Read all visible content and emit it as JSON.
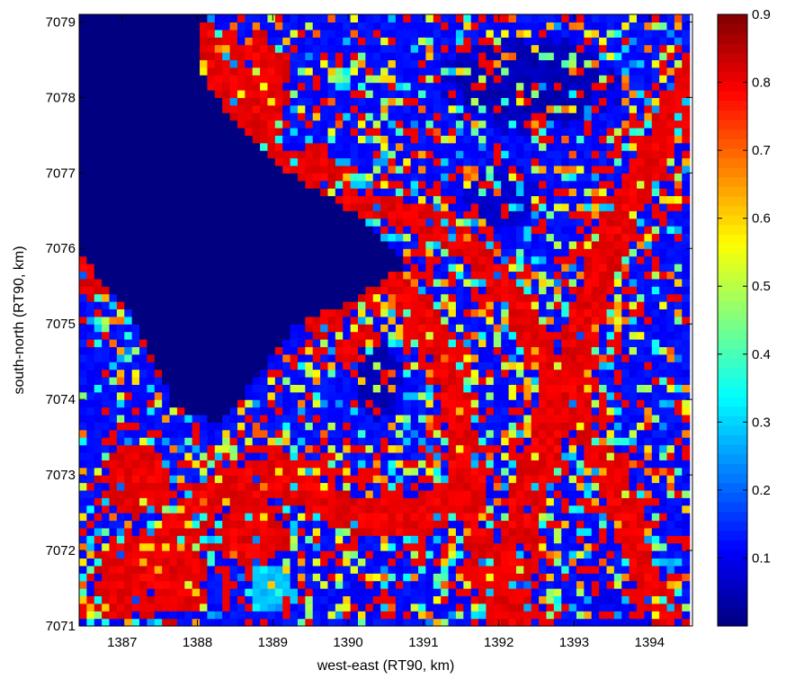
{
  "chart_data": {
    "type": "heatmap",
    "title": "",
    "xlabel": "west-east (RT90, km)",
    "ylabel": "south-north (RT90, km)",
    "xlim": [
      1386.43,
      1394.57
    ],
    "ylim": [
      7071.0,
      7079.1
    ],
    "xticks": [
      1387,
      1388,
      1389,
      1390,
      1391,
      1392,
      1393,
      1394
    ],
    "xtick_labels": [
      "1387",
      "1388",
      "1389",
      "1390",
      "1391",
      "1392",
      "1393",
      "1394"
    ],
    "yticks": [
      7071,
      7072,
      7073,
      7074,
      7075,
      7076,
      7077,
      7078,
      7079
    ],
    "ytick_labels": [
      "7071",
      "7072",
      "7073",
      "7074",
      "7075",
      "7076",
      "7077",
      "7078",
      "7079"
    ],
    "colormap": "jet",
    "clim": [
      0.0,
      0.9
    ],
    "colorbar_ticks": [
      0.1,
      0.2,
      0.3,
      0.4,
      0.5,
      0.6,
      0.7,
      0.8,
      0.9
    ],
    "colorbar_tick_labels": [
      "0.1",
      "0.2",
      "0.3",
      "0.4",
      "0.5",
      "0.6",
      "0.7",
      "0.8",
      "0.9"
    ],
    "grid": false,
    "cell_size_km": 0.1,
    "regions": [
      {
        "kind": "background",
        "value": 0.12
      },
      {
        "kind": "lake",
        "value": 0.0,
        "points": [
          [
            1386.45,
            7079.1
          ],
          [
            1388.1,
            7079.1
          ],
          [
            1388.0,
            7078.4
          ],
          [
            1388.4,
            7077.8
          ],
          [
            1389.2,
            7077.0
          ],
          [
            1390.2,
            7076.4
          ],
          [
            1390.8,
            7075.8
          ],
          [
            1390.0,
            7075.3
          ],
          [
            1389.3,
            7075.0
          ],
          [
            1388.8,
            7074.3
          ],
          [
            1388.3,
            7073.7
          ],
          [
            1387.7,
            7073.9
          ],
          [
            1387.4,
            7074.6
          ],
          [
            1387.0,
            7075.3
          ],
          [
            1386.45,
            7075.9
          ]
        ]
      },
      {
        "kind": "band",
        "value": 0.8,
        "width": 0.35,
        "points": [
          [
            1388.0,
            7079.1
          ],
          [
            1388.3,
            7078.2
          ],
          [
            1388.9,
            7077.4
          ],
          [
            1389.5,
            7076.9
          ],
          [
            1390.3,
            7076.6
          ],
          [
            1391.0,
            7076.4
          ],
          [
            1391.6,
            7076.0
          ],
          [
            1392.2,
            7075.3
          ],
          [
            1392.6,
            7074.6
          ],
          [
            1393.0,
            7073.9
          ],
          [
            1393.4,
            7073.2
          ],
          [
            1393.7,
            7072.4
          ],
          [
            1394.0,
            7071.6
          ],
          [
            1394.3,
            7071.0
          ]
        ]
      },
      {
        "kind": "band",
        "value": 0.8,
        "width": 0.45,
        "points": [
          [
            1394.57,
            7078.3
          ],
          [
            1394.1,
            7077.3
          ],
          [
            1393.6,
            7076.4
          ],
          [
            1393.3,
            7075.5
          ],
          [
            1393.0,
            7074.6
          ],
          [
            1392.7,
            7073.7
          ],
          [
            1392.4,
            7072.8
          ],
          [
            1392.2,
            7071.9
          ],
          [
            1392.2,
            7071.0
          ]
        ]
      },
      {
        "kind": "band",
        "value": 0.8,
        "width": 0.35,
        "points": [
          [
            1389.6,
            7075.0
          ],
          [
            1390.0,
            7075.4
          ],
          [
            1390.5,
            7075.6
          ],
          [
            1391.0,
            7075.2
          ],
          [
            1391.3,
            7074.5
          ],
          [
            1391.5,
            7073.7
          ],
          [
            1391.5,
            7073.0
          ],
          [
            1391.7,
            7072.3
          ],
          [
            1391.9,
            7071.6
          ],
          [
            1392.0,
            7071.0
          ]
        ]
      },
      {
        "kind": "band",
        "value": 0.8,
        "width": 0.5,
        "points": [
          [
            1386.9,
            7071.3
          ],
          [
            1387.6,
            7072.1
          ],
          [
            1388.3,
            7072.8
          ],
          [
            1389.1,
            7073.0
          ],
          [
            1390.0,
            7072.5
          ],
          [
            1390.9,
            7072.4
          ],
          [
            1391.6,
            7072.9
          ]
        ]
      },
      {
        "kind": "blob",
        "value": 0.8,
        "center": [
          1387.4,
          7071.7
        ],
        "radius": [
          0.7,
          0.6
        ]
      },
      {
        "kind": "blob",
        "value": 0.8,
        "center": [
          1388.7,
          7072.2
        ],
        "radius": [
          0.5,
          0.4
        ]
      },
      {
        "kind": "blob",
        "value": 0.8,
        "center": [
          1387.2,
          7072.9
        ],
        "radius": [
          0.45,
          0.45
        ]
      },
      {
        "kind": "blob",
        "value": 0.8,
        "center": [
          1386.65,
          7075.9
        ],
        "radius": [
          0.25,
          0.5
        ]
      },
      {
        "kind": "blob",
        "value": 0.8,
        "center": [
          1388.75,
          7078.1
        ],
        "radius": [
          0.45,
          0.7
        ]
      },
      {
        "kind": "blob",
        "value": 0.8,
        "center": [
          1389.5,
          7077.0
        ],
        "radius": [
          0.4,
          0.35
        ]
      },
      {
        "kind": "blob",
        "value": 0.8,
        "center": [
          1390.2,
          7074.6
        ],
        "radius": [
          0.35,
          0.35
        ]
      },
      {
        "kind": "blob",
        "value": 0.8,
        "center": [
          1387.7,
          7074.7
        ],
        "radius": [
          0.35,
          0.4
        ]
      },
      {
        "kind": "blob",
        "value": 0.28,
        "center": [
          1389.0,
          7071.5
        ],
        "radius": [
          0.3,
          0.3
        ]
      },
      {
        "kind": "blob",
        "value": 0.3,
        "center": [
          1392.0,
          7071.2
        ],
        "radius": [
          0.3,
          0.2
        ]
      },
      {
        "kind": "blob",
        "value": 0.1,
        "center": [
          1390.3,
          7071.4
        ],
        "radius": [
          0.3,
          0.3
        ]
      },
      {
        "kind": "blob",
        "value": 0.1,
        "center": [
          1393.6,
          7071.3
        ],
        "radius": [
          0.4,
          0.3
        ]
      },
      {
        "kind": "blob",
        "value": 0.05,
        "center": [
          1392.4,
          7078.2
        ],
        "radius": [
          1.1,
          0.6
        ]
      },
      {
        "kind": "blob",
        "value": 0.05,
        "center": [
          1390.4,
          7074.3
        ],
        "radius": [
          0.3,
          0.5
        ]
      },
      {
        "kind": "blob",
        "value": 0.07,
        "center": [
          1392.0,
          7076.7
        ],
        "radius": [
          0.5,
          0.4
        ]
      }
    ]
  }
}
